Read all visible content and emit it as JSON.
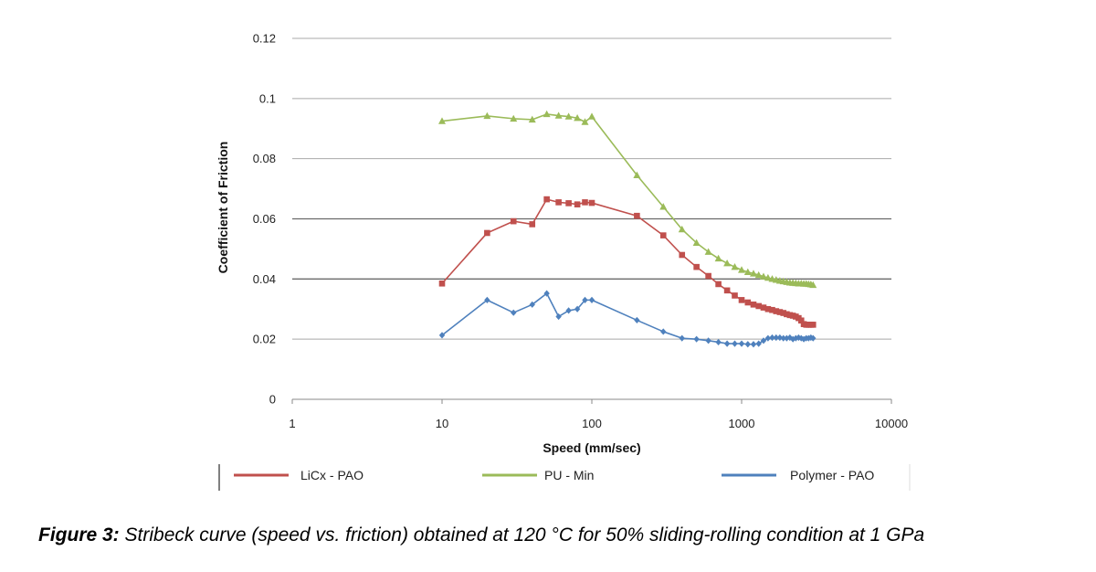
{
  "chart_data": {
    "type": "line",
    "title": "",
    "xlabel": "Speed (mm/sec)",
    "ylabel": "Coefficient of Friction",
    "x_scale": "log",
    "xlim": [
      1,
      10000
    ],
    "ylim": [
      0,
      0.12
    ],
    "x_ticks": [
      "1",
      "10",
      "100",
      "1000",
      "10000"
    ],
    "y_ticks": [
      "0",
      "0.02",
      "0.04",
      "0.06",
      "0.08",
      "0.1",
      "0.12"
    ],
    "grid": "horizontal",
    "legend_position": "bottom",
    "series": [
      {
        "name": "LiCx - PAO",
        "color": "#c0504d",
        "marker": "square",
        "points": [
          [
            10,
            0.0385
          ],
          [
            20,
            0.0553
          ],
          [
            30,
            0.0592
          ],
          [
            40,
            0.0582
          ],
          [
            50,
            0.0665
          ],
          [
            60,
            0.0655
          ],
          [
            70,
            0.0652
          ],
          [
            80,
            0.0648
          ],
          [
            90,
            0.0655
          ],
          [
            100,
            0.0653
          ],
          [
            200,
            0.061
          ],
          [
            300,
            0.0545
          ],
          [
            400,
            0.048
          ],
          [
            500,
            0.044
          ],
          [
            600,
            0.041
          ],
          [
            700,
            0.0383
          ],
          [
            800,
            0.0362
          ],
          [
            900,
            0.0345
          ],
          [
            1000,
            0.033
          ],
          [
            1100,
            0.0322
          ],
          [
            1200,
            0.0315
          ],
          [
            1300,
            0.031
          ],
          [
            1400,
            0.0305
          ],
          [
            1500,
            0.03
          ],
          [
            1600,
            0.0297
          ],
          [
            1700,
            0.0293
          ],
          [
            1800,
            0.029
          ],
          [
            1900,
            0.0287
          ],
          [
            2000,
            0.0283
          ],
          [
            2100,
            0.028
          ],
          [
            2200,
            0.0278
          ],
          [
            2300,
            0.0275
          ],
          [
            2400,
            0.027
          ],
          [
            2500,
            0.0262
          ],
          [
            2600,
            0.025
          ],
          [
            2700,
            0.0248
          ],
          [
            2800,
            0.0248
          ],
          [
            2900,
            0.0248
          ],
          [
            3000,
            0.0248
          ]
        ]
      },
      {
        "name": "PU - Min",
        "color": "#9bbb59",
        "marker": "triangle",
        "points": [
          [
            10,
            0.0925
          ],
          [
            20,
            0.0942
          ],
          [
            30,
            0.0933
          ],
          [
            40,
            0.093
          ],
          [
            50,
            0.0948
          ],
          [
            60,
            0.0943
          ],
          [
            70,
            0.094
          ],
          [
            80,
            0.0935
          ],
          [
            90,
            0.0922
          ],
          [
            100,
            0.094
          ],
          [
            200,
            0.0745
          ],
          [
            300,
            0.064
          ],
          [
            400,
            0.0565
          ],
          [
            500,
            0.052
          ],
          [
            600,
            0.049
          ],
          [
            700,
            0.0468
          ],
          [
            800,
            0.0452
          ],
          [
            900,
            0.044
          ],
          [
            1000,
            0.043
          ],
          [
            1100,
            0.0423
          ],
          [
            1200,
            0.0418
          ],
          [
            1300,
            0.0413
          ],
          [
            1400,
            0.0408
          ],
          [
            1500,
            0.0404
          ],
          [
            1600,
            0.04
          ],
          [
            1700,
            0.0397
          ],
          [
            1800,
            0.0394
          ],
          [
            1900,
            0.0392
          ],
          [
            2000,
            0.039
          ],
          [
            2100,
            0.0388
          ],
          [
            2200,
            0.0387
          ],
          [
            2300,
            0.0386
          ],
          [
            2400,
            0.0385
          ],
          [
            2500,
            0.0385
          ],
          [
            2600,
            0.0384
          ],
          [
            2700,
            0.0384
          ],
          [
            2800,
            0.0383
          ],
          [
            2900,
            0.0382
          ],
          [
            3000,
            0.038
          ]
        ]
      },
      {
        "name": "Polymer - PAO",
        "color": "#4f81bd",
        "marker": "diamond",
        "points": [
          [
            10,
            0.0213
          ],
          [
            20,
            0.033
          ],
          [
            30,
            0.0288
          ],
          [
            40,
            0.0315
          ],
          [
            50,
            0.0352
          ],
          [
            60,
            0.0275
          ],
          [
            70,
            0.0295
          ],
          [
            80,
            0.03
          ],
          [
            90,
            0.033
          ],
          [
            100,
            0.033
          ],
          [
            200,
            0.0263
          ],
          [
            300,
            0.0225
          ],
          [
            400,
            0.0203
          ],
          [
            500,
            0.02
          ],
          [
            600,
            0.0195
          ],
          [
            700,
            0.019
          ],
          [
            800,
            0.0185
          ],
          [
            900,
            0.0185
          ],
          [
            1000,
            0.0185
          ],
          [
            1100,
            0.0183
          ],
          [
            1200,
            0.0183
          ],
          [
            1300,
            0.0185
          ],
          [
            1400,
            0.0195
          ],
          [
            1500,
            0.0203
          ],
          [
            1600,
            0.0205
          ],
          [
            1700,
            0.0205
          ],
          [
            1800,
            0.0205
          ],
          [
            1900,
            0.0203
          ],
          [
            2000,
            0.0203
          ],
          [
            2100,
            0.0205
          ],
          [
            2200,
            0.02
          ],
          [
            2300,
            0.0203
          ],
          [
            2400,
            0.0205
          ],
          [
            2500,
            0.0203
          ],
          [
            2600,
            0.02
          ],
          [
            2700,
            0.0203
          ],
          [
            2800,
            0.0203
          ],
          [
            2900,
            0.0205
          ],
          [
            3000,
            0.0203
          ]
        ]
      }
    ]
  },
  "caption": {
    "label": "Figure 3:",
    "text": " Stribeck curve (speed vs. friction) obtained at 120 °C for 50% sliding-rolling condition at 1 GPa"
  }
}
